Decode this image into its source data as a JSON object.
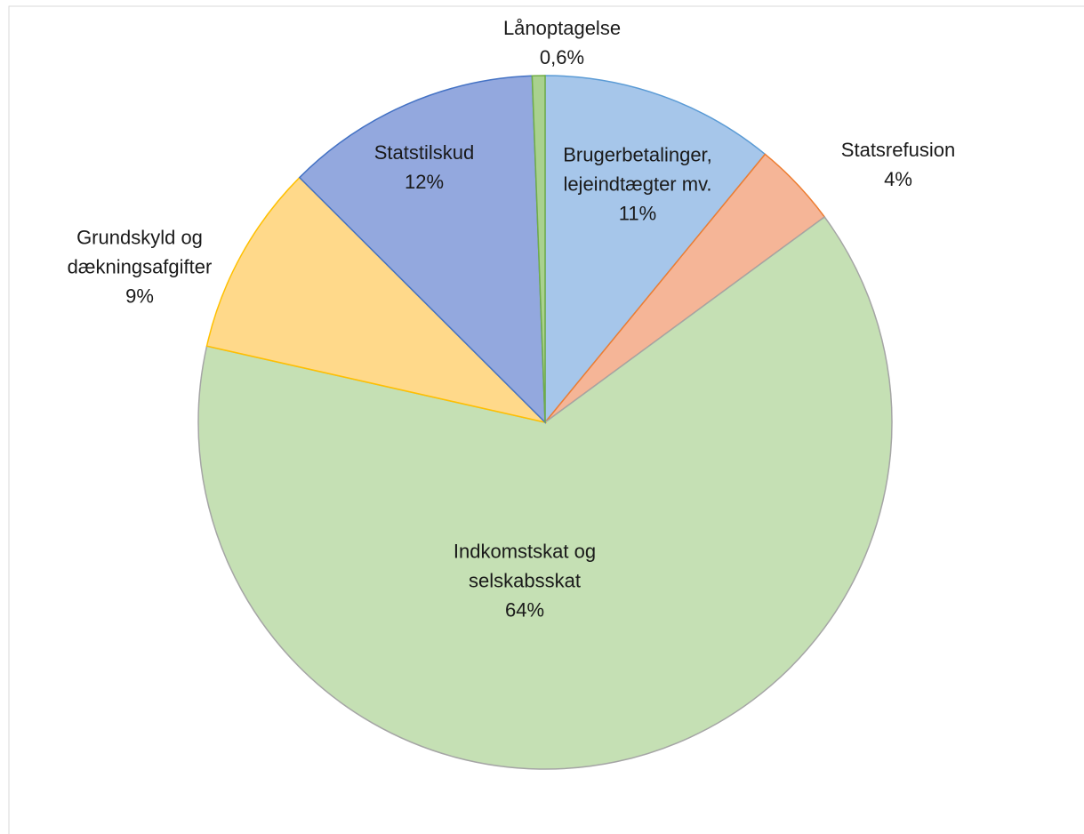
{
  "chart_data": {
    "type": "pie",
    "categories": [
      "Brugerbetalinger,\nlejeindtægter mv.",
      "Statsrefusion",
      "Indkomstskat og\nselskabsskat",
      "Grundskyld og\ndækningsafgifter",
      "Statstilskud",
      "Lånoptagelse"
    ],
    "values": [
      11,
      4,
      64,
      9,
      12,
      0.6
    ],
    "value_labels": [
      "11%",
      "4%",
      "64%",
      "9%",
      "12%",
      "0,6%"
    ],
    "colors": [
      "#a6c6ea",
      "#f5b597",
      "#c5e0b4",
      "#ffd98a",
      "#93a8de",
      "#a9d18e"
    ]
  }
}
